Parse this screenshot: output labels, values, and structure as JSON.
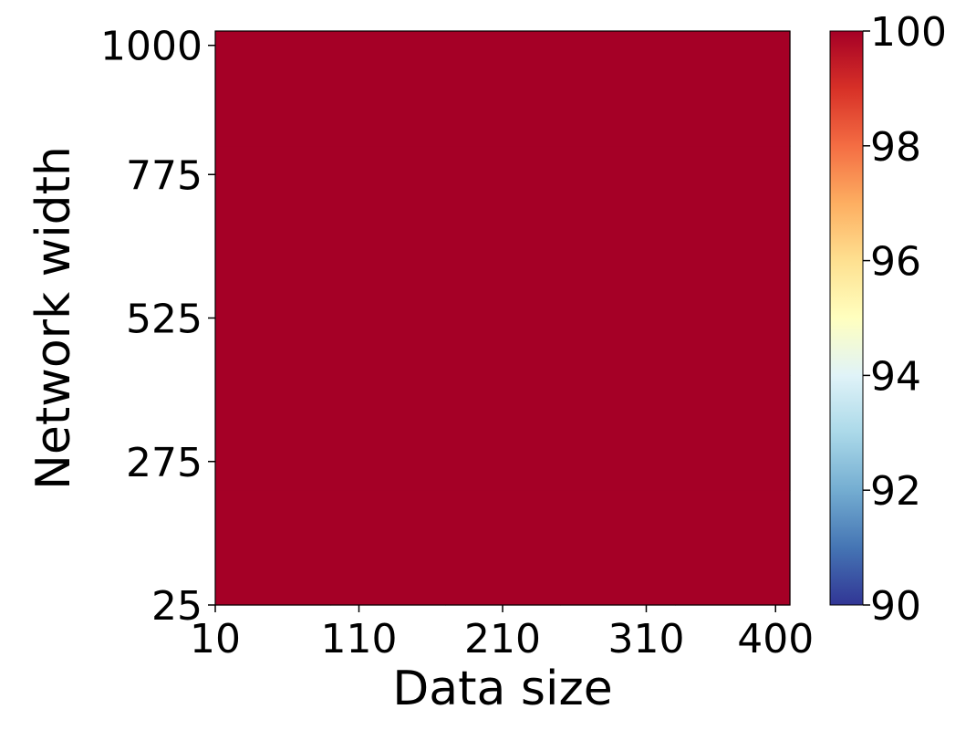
{
  "chart_data": {
    "type": "heatmap",
    "title": "",
    "xlabel": "Data size",
    "ylabel": "Network width",
    "x_ticks": [
      "10",
      "110",
      "210",
      "310",
      "400"
    ],
    "y_ticks": [
      "25",
      "275",
      "525",
      "775",
      "1000"
    ],
    "xlim": [
      10,
      410
    ],
    "ylim": [
      25,
      1025
    ],
    "x_tick_values": [
      10,
      110,
      210,
      310,
      400
    ],
    "y_tick_values": [
      25,
      275,
      525,
      775,
      1000
    ],
    "values": [
      [
        100,
        100,
        100,
        100,
        100
      ],
      [
        100,
        100,
        100,
        100,
        100
      ],
      [
        100,
        100,
        100,
        100,
        100
      ],
      [
        100,
        100,
        100,
        100,
        100
      ],
      [
        100,
        100,
        100,
        100,
        100
      ]
    ],
    "colorbar": {
      "min": 90,
      "max": 100,
      "ticks": [
        "90",
        "92",
        "94",
        "96",
        "98",
        "100"
      ],
      "colormap": "RdYlBu_r",
      "stops": [
        "#313695",
        "#4575b4",
        "#74add1",
        "#abd9e9",
        "#e0f3f8",
        "#ffffbf",
        "#fee090",
        "#fdae61",
        "#f46d43",
        "#d73027",
        "#a50026"
      ]
    },
    "grid": false,
    "legend": "none"
  }
}
